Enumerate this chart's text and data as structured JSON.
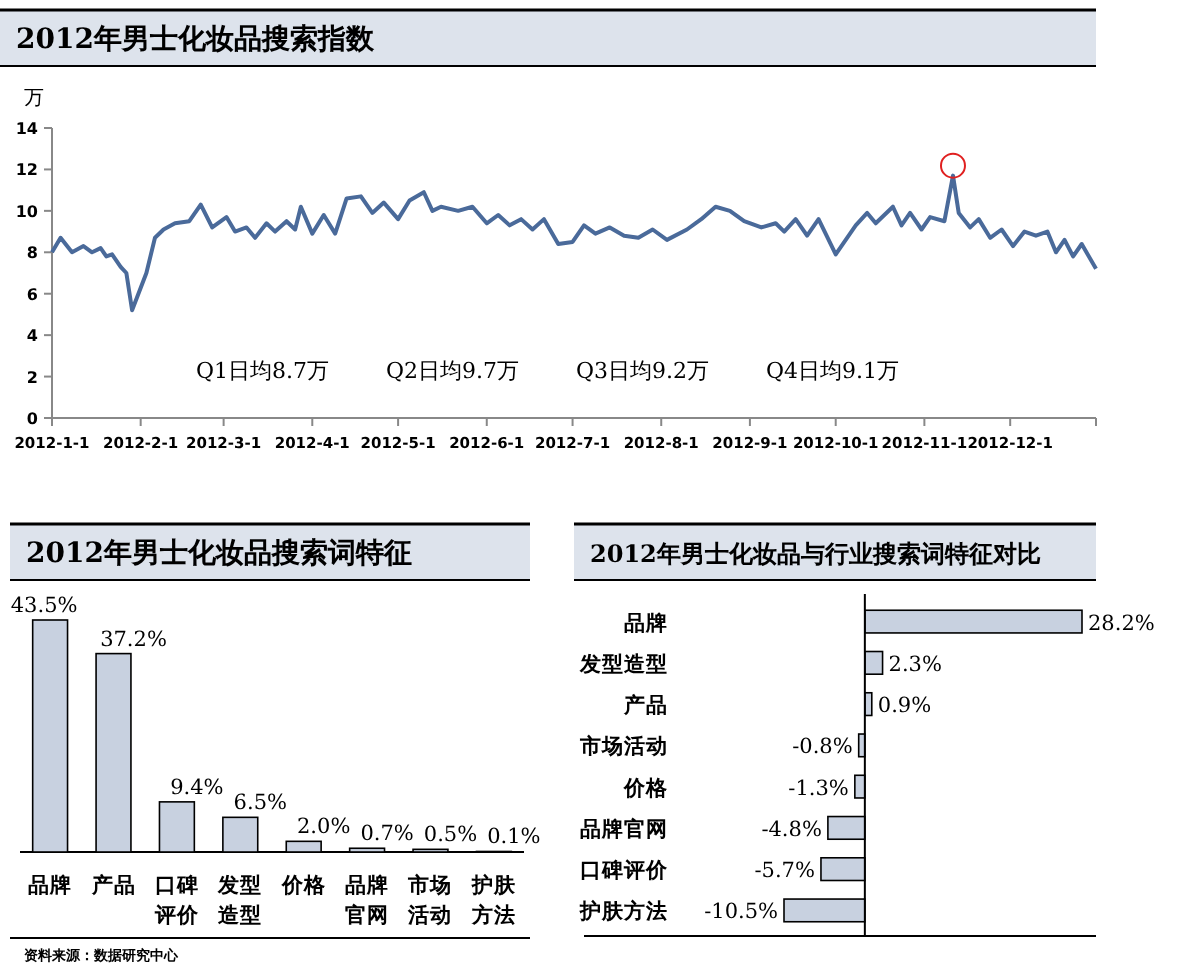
{
  "chart_data": [
    {
      "type": "line",
      "title": "2012年男士化妆品搜索指数",
      "ylabel": "万",
      "marker": "none",
      "line_style": "solid",
      "annotations": [
        "Q1日均8.7万",
        "Q2日均9.7万",
        "Q3日均9.2万",
        "Q4日均9.1万"
      ],
      "xlim": [
        "2012-01-01",
        "2012-12-31"
      ],
      "ylim": [
        0,
        14
      ],
      "yticks": [
        0,
        2,
        4,
        6,
        8,
        10,
        12,
        14
      ],
      "xticks": [
        {
          "value": "2012-01-01",
          "label": "2012-1-1"
        },
        {
          "value": "2012-02-01",
          "label": "2012-2-1"
        },
        {
          "value": "2012-03-01",
          "label": "2012-3-1"
        },
        {
          "value": "2012-04-01",
          "label": "2012-4-1"
        },
        {
          "value": "2012-05-01",
          "label": "2012-5-1"
        },
        {
          "value": "2012-06-01",
          "label": "2012-6-1"
        },
        {
          "value": "2012-07-01",
          "label": "2012-7-1"
        },
        {
          "value": "2012-08-01",
          "label": "2012-8-1"
        },
        {
          "value": "2012-09-01",
          "label": "2012-9-1"
        },
        {
          "value": "2012-10-01",
          "label": "2012-10-1"
        },
        {
          "value": "2012-11-01",
          "label": "2012-11-1"
        },
        {
          "value": "2012-12-01",
          "label": "2012-12-1"
        }
      ],
      "series": [
        {
          "color": "#4a6a9a",
          "x": [
            "2012-01-01",
            "2012-01-04",
            "2012-01-08",
            "2012-01-12",
            "2012-01-15",
            "2012-01-18",
            "2012-01-20",
            "2012-01-22",
            "2012-01-25",
            "2012-01-27",
            "2012-01-29",
            "2012-02-03",
            "2012-02-06",
            "2012-02-09",
            "2012-02-13",
            "2012-02-18",
            "2012-02-22",
            "2012-02-26",
            "2012-03-02",
            "2012-03-05",
            "2012-03-09",
            "2012-03-12",
            "2012-03-16",
            "2012-03-19",
            "2012-03-23",
            "2012-03-26",
            "2012-03-28",
            "2012-04-01",
            "2012-04-05",
            "2012-04-09",
            "2012-04-13",
            "2012-04-18",
            "2012-04-22",
            "2012-04-26",
            "2012-05-01",
            "2012-05-05",
            "2012-05-10",
            "2012-05-13",
            "2012-05-16",
            "2012-05-22",
            "2012-05-27",
            "2012-06-01",
            "2012-06-05",
            "2012-06-09",
            "2012-06-13",
            "2012-06-17",
            "2012-06-21",
            "2012-06-26",
            "2012-07-01",
            "2012-07-05",
            "2012-07-09",
            "2012-07-14",
            "2012-07-19",
            "2012-07-24",
            "2012-07-29",
            "2012-08-03",
            "2012-08-10",
            "2012-08-15",
            "2012-08-20",
            "2012-08-25",
            "2012-08-30",
            "2012-09-05",
            "2012-09-10",
            "2012-09-13",
            "2012-09-17",
            "2012-09-21",
            "2012-09-25",
            "2012-10-01",
            "2012-10-08",
            "2012-10-12",
            "2012-10-15",
            "2012-10-18",
            "2012-10-21",
            "2012-10-24",
            "2012-10-27",
            "2012-10-31",
            "2012-11-03",
            "2012-11-08",
            "2012-11-11",
            "2012-11-13",
            "2012-11-17",
            "2012-11-20",
            "2012-11-24",
            "2012-11-28",
            "2012-12-02",
            "2012-12-06",
            "2012-12-10",
            "2012-12-14",
            "2012-12-17",
            "2012-12-20",
            "2012-12-23",
            "2012-12-26",
            "2012-12-31"
          ],
          "values": [
            8.0,
            8.7,
            8.0,
            8.3,
            8.0,
            8.2,
            7.8,
            7.9,
            7.3,
            7.0,
            5.2,
            7.0,
            8.7,
            9.1,
            9.4,
            9.5,
            10.3,
            9.2,
            9.7,
            9.0,
            9.2,
            8.7,
            9.4,
            9.0,
            9.5,
            9.1,
            10.2,
            8.9,
            9.8,
            8.9,
            10.6,
            10.7,
            9.9,
            10.4,
            9.6,
            10.5,
            10.9,
            10.0,
            10.2,
            10.0,
            10.2,
            9.4,
            9.8,
            9.3,
            9.6,
            9.1,
            9.6,
            8.4,
            8.5,
            9.3,
            8.9,
            9.2,
            8.8,
            8.7,
            9.1,
            8.6,
            9.1,
            9.6,
            10.2,
            10.0,
            9.5,
            9.2,
            9.4,
            9.0,
            9.6,
            8.8,
            9.6,
            7.9,
            9.3,
            9.9,
            9.4,
            9.8,
            10.2,
            9.3,
            9.9,
            9.1,
            9.7,
            9.5,
            11.7,
            9.9,
            9.2,
            9.6,
            8.7,
            9.1,
            8.3,
            9.0,
            8.8,
            9.0,
            8.0,
            8.6,
            7.8,
            8.4,
            7.2
          ]
        }
      ]
    },
    {
      "type": "bar",
      "title": "2012年男士化妆品搜索词特征",
      "categories": [
        "品牌",
        "产品",
        "口碑评价",
        "发型造型",
        "价格",
        "品牌官网",
        "市场活动",
        "护肤方法"
      ],
      "values": [
        43.5,
        37.2,
        9.4,
        6.5,
        2.0,
        0.7,
        0.5,
        0.1
      ],
      "color": "#c8d1e0",
      "value_labels": [
        "43.5%",
        "37.2%",
        "9.4%",
        "6.5%",
        "2.0%",
        "0.7%",
        "0.5%",
        "0.1%"
      ],
      "annotations": [
        "资料来源：数据研究中心"
      ]
    },
    {
      "type": "bar",
      "orientation": "horizontal",
      "title": "2012年男士化妆品与行业搜索词特征对比",
      "categories": [
        "品牌",
        "发型造型",
        "产品",
        "市场活动",
        "价格",
        "品牌官网",
        "口碑评价",
        "护肤方法"
      ],
      "values": [
        28.2,
        2.3,
        0.9,
        -0.8,
        -1.3,
        -4.8,
        -5.7,
        -10.5
      ],
      "color": "#c8d1e0",
      "value_labels": [
        "28.2%",
        "2.3%",
        "0.9%",
        "-0.8%",
        "-1.3%",
        "-4.8%",
        "-5.7%",
        "-10.5%"
      ]
    }
  ]
}
